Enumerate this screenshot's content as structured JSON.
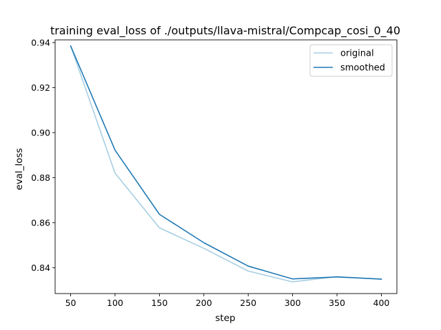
{
  "chart_data": {
    "type": "line",
    "title": "training eval_loss of ./outputs/llava-mistral/Compcap_cosi_0_40",
    "xlabel": "step",
    "ylabel": "eval_loss",
    "x": [
      50,
      100,
      150,
      200,
      250,
      300,
      350,
      400
    ],
    "xlim": [
      32.5,
      417.5
    ],
    "ylim": [
      0.8285,
      0.9412
    ],
    "xticks": [
      50,
      100,
      150,
      200,
      250,
      300,
      350,
      400
    ],
    "yticks": [
      0.84,
      0.86,
      0.88,
      0.9,
      0.92,
      0.94
    ],
    "ytick_labels": [
      "0.84",
      "0.86",
      "0.88",
      "0.90",
      "0.92",
      "0.94"
    ],
    "grid": false,
    "legend_position": "top-right",
    "series": [
      {
        "name": "original",
        "color": "#a6cee3",
        "values": [
          0.9385,
          0.882,
          0.8577,
          0.8486,
          0.8385,
          0.8337,
          0.836,
          0.8349
        ]
      },
      {
        "name": "smoothed",
        "color": "#1f78b4",
        "values": [
          0.9385,
          0.8922,
          0.8637,
          0.8511,
          0.8407,
          0.835,
          0.8359,
          0.8349
        ]
      }
    ]
  }
}
